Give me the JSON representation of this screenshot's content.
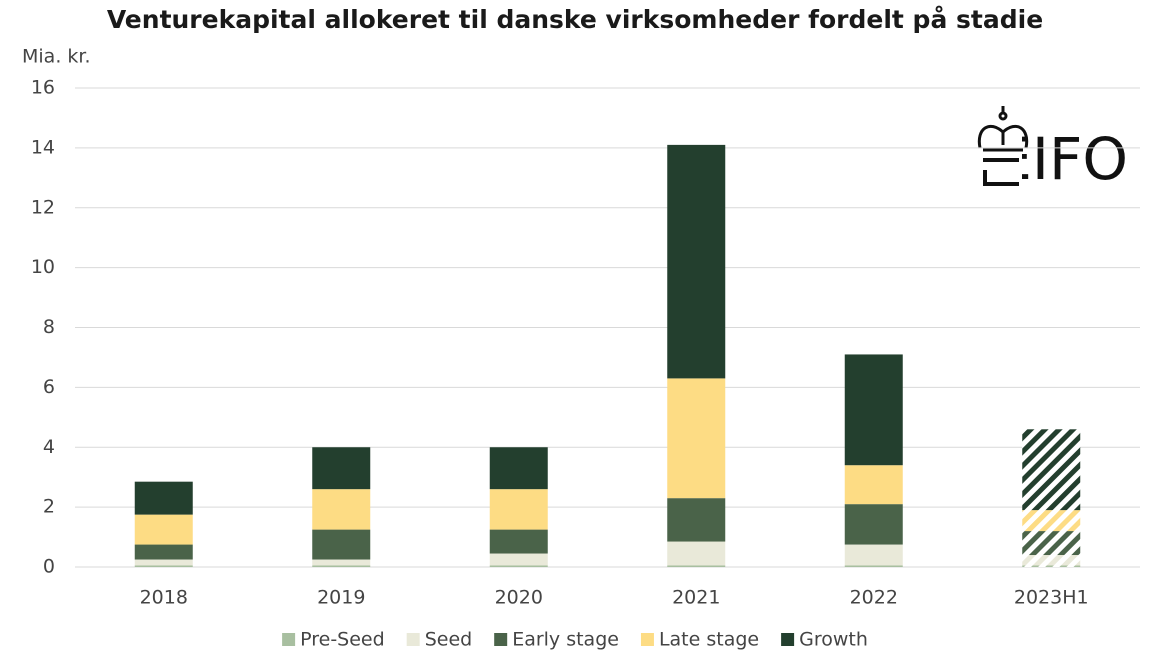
{
  "chart_data": {
    "type": "stacked_bar",
    "title": "Venturekapital allokeret til danske virksomheder fordelt på stadie",
    "y_label": "Mia. kr.",
    "logo": "EIFO",
    "categories": [
      "2018",
      "2019",
      "2020",
      "2021",
      "2022",
      "2023H1"
    ],
    "hatched": [
      false,
      false,
      false,
      false,
      false,
      true
    ],
    "series": [
      {
        "name": "Pre-Seed",
        "color": "#a8bfa0",
        "values": [
          0.05,
          0.05,
          0.05,
          0.05,
          0.05,
          0.05
        ]
      },
      {
        "name": "Seed",
        "color": "#e9e9d9",
        "values": [
          0.2,
          0.2,
          0.4,
          0.8,
          0.7,
          0.35
        ]
      },
      {
        "name": "Early stage",
        "color": "#4a6349",
        "values": [
          0.5,
          1.0,
          0.8,
          1.45,
          1.35,
          0.8
        ]
      },
      {
        "name": "Late stage",
        "color": "#fddc84",
        "values": [
          1.0,
          1.35,
          1.35,
          4.0,
          1.3,
          0.7
        ]
      },
      {
        "name": "Growth",
        "color": "#233f2e",
        "values": [
          1.1,
          1.4,
          1.4,
          7.8,
          3.7,
          2.7
        ]
      }
    ],
    "ylim": [
      0,
      16
    ],
    "yticks": [
      0,
      2,
      4,
      6,
      8,
      10,
      12,
      14,
      16
    ],
    "grid": true
  }
}
